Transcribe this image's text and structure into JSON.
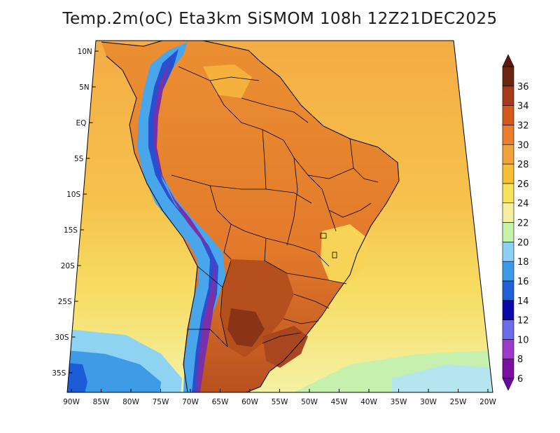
{
  "title": "Temp.2m(oC) Eta3km SiSMOM 108h 12Z21DEC2025",
  "map": {
    "variable": "2 m temperature",
    "units": "oC",
    "lat_labels": [
      "10N",
      "5N",
      "EQ",
      "5S",
      "10S",
      "15S",
      "20S",
      "25S",
      "30S",
      "35S"
    ],
    "lon_labels": [
      "90W",
      "85W",
      "80W",
      "75W",
      "70W",
      "65W",
      "60W",
      "55W",
      "50W",
      "45W",
      "40W",
      "35W",
      "30W",
      "25W",
      "20W"
    ],
    "lon_values": [
      -90,
      -85,
      -80,
      -75,
      -70,
      -65,
      -60,
      -55,
      -50,
      -45,
      -40,
      -35,
      -30,
      -25,
      -20
    ],
    "lat_values": [
      10,
      5,
      0,
      -5,
      -10,
      -15,
      -20,
      -25,
      -30,
      -35
    ]
  },
  "colorbar": {
    "levels": [
      "6",
      "8",
      "10",
      "12",
      "14",
      "16",
      "18",
      "20",
      "22",
      "24",
      "26",
      "28",
      "30",
      "32",
      "34",
      "36"
    ],
    "colors": [
      "#7b0fa0",
      "#9e3ac8",
      "#6d6ce8",
      "#0a0aa8",
      "#1f5fd8",
      "#3d9ae8",
      "#8cd0f5",
      "#c4f2a8",
      "#f5f0a0",
      "#f7e25c",
      "#f5c033",
      "#f2a23a",
      "#ea7e2e",
      "#d45a1c",
      "#a63c1a",
      "#6b2612"
    ],
    "below_color": "#6a0aa0",
    "above_color": "#5a1a12"
  },
  "colors": {
    "ocean_warm": "#f4ab45",
    "ocean_mid": "#f8d85a",
    "ocean_cool": "#f5f0a0",
    "land_hot": "#e67e2c",
    "land_very_hot": "#b0481e",
    "andes": "#7b30a8",
    "boundary": "#000000"
  }
}
